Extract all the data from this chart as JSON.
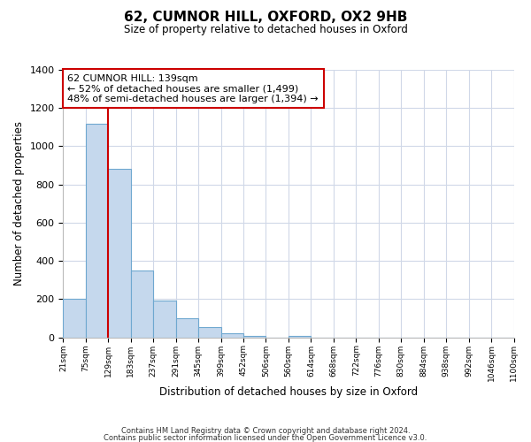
{
  "title": "62, CUMNOR HILL, OXFORD, OX2 9HB",
  "subtitle": "Size of property relative to detached houses in Oxford",
  "xlabel": "Distribution of detached houses by size in Oxford",
  "ylabel": "Number of detached properties",
  "bar_values": [
    200,
    1120,
    880,
    350,
    195,
    100,
    55,
    20,
    10,
    0,
    10,
    0,
    0,
    0,
    0,
    0,
    0,
    0,
    0,
    0
  ],
  "bar_labels": [
    "21sqm",
    "75sqm",
    "129sqm",
    "183sqm",
    "237sqm",
    "291sqm",
    "345sqm",
    "399sqm",
    "452sqm",
    "506sqm",
    "560sqm",
    "614sqm",
    "668sqm",
    "722sqm",
    "776sqm",
    "830sqm",
    "884sqm",
    "938sqm",
    "992sqm",
    "1046sqm",
    "1100sqm"
  ],
  "bar_color": "#c5d8ed",
  "bar_edge_color": "#6fa8d0",
  "property_line_color": "#cc0000",
  "property_line_x": 2,
  "annotation_title": "62 CUMNOR HILL: 139sqm",
  "annotation_line1": "← 52% of detached houses are smaller (1,499)",
  "annotation_line2": "48% of semi-detached houses are larger (1,394) →",
  "annotation_box_color": "#ffffff",
  "annotation_box_edge": "#cc0000",
  "ylim": [
    0,
    1400
  ],
  "yticks": [
    0,
    200,
    400,
    600,
    800,
    1000,
    1200,
    1400
  ],
  "footer_line1": "Contains HM Land Registry data © Crown copyright and database right 2024.",
  "footer_line2": "Contains public sector information licensed under the Open Government Licence v3.0.",
  "background_color": "#ffffff",
  "grid_color": "#d0d8e8"
}
